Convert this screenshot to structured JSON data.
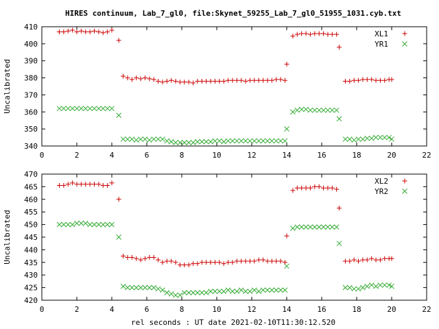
{
  "figure": {
    "title": "HIRES continuum, Lab_7_gl0, file:Skynet_59255_Lab_7_gl0_51955_1031.cyb.txt",
    "xlabel": "rel seconds : UT date 2021-02-10T11:30:12.520"
  },
  "colors": {
    "x_series": "#cc0000",
    "y_series": "#33aa33",
    "axes": "#000000"
  },
  "chart_data": [
    {
      "type": "scatter",
      "ylabel": "Uncalibrated",
      "xlim": [
        0,
        22
      ],
      "ylim": [
        340,
        410
      ],
      "xticks": [
        0,
        2,
        4,
        6,
        8,
        10,
        12,
        14,
        16,
        18,
        20,
        22
      ],
      "yticks": [
        340,
        350,
        360,
        370,
        380,
        390,
        400,
        410
      ],
      "legend_position": "top-right",
      "series": [
        {
          "name": "XL1",
          "marker": "+",
          "color": "#cc0000",
          "x": [
            1.0,
            1.25,
            1.5,
            1.75,
            2.0,
            2.25,
            2.5,
            2.75,
            3.0,
            3.25,
            3.5,
            3.75,
            4.0,
            4.4,
            4.65,
            4.9,
            5.15,
            5.4,
            5.65,
            5.9,
            6.15,
            6.4,
            6.65,
            6.9,
            7.15,
            7.4,
            7.65,
            7.9,
            8.15,
            8.4,
            8.65,
            8.9,
            9.15,
            9.4,
            9.65,
            9.9,
            10.15,
            10.4,
            10.65,
            10.9,
            11.15,
            11.4,
            11.65,
            11.9,
            12.15,
            12.4,
            12.65,
            12.9,
            13.15,
            13.4,
            13.65,
            13.9,
            14.0,
            14.35,
            14.6,
            14.85,
            15.1,
            15.35,
            15.6,
            15.85,
            16.1,
            16.35,
            16.6,
            16.85,
            17.0,
            17.35,
            17.6,
            17.85,
            18.1,
            18.35,
            18.6,
            18.85,
            19.1,
            19.35,
            19.6,
            19.85,
            20.0
          ],
          "y": [
            407,
            407,
            407.5,
            408,
            407,
            407.5,
            407,
            407,
            407.5,
            407,
            406.5,
            407,
            408,
            402,
            381,
            380,
            379,
            380,
            379.5,
            380,
            379.5,
            379,
            378,
            377.5,
            378,
            378.5,
            378,
            377.5,
            377.5,
            377.5,
            377,
            378,
            378,
            378,
            378,
            378,
            378,
            378,
            378.5,
            378.5,
            378.5,
            378.5,
            378,
            378.5,
            378.5,
            378.5,
            378.5,
            378.5,
            378.5,
            379,
            379,
            378.5,
            388,
            404.5,
            405.5,
            406,
            406,
            405.5,
            406,
            406,
            406,
            405.5,
            405.5,
            405.5,
            398,
            378,
            378,
            378.5,
            378.5,
            379,
            379,
            379,
            378.5,
            378.5,
            378.5,
            379,
            379
          ]
        },
        {
          "name": "YR1",
          "marker": "x",
          "color": "#33aa33",
          "x": [
            1.0,
            1.25,
            1.5,
            1.75,
            2.0,
            2.25,
            2.5,
            2.75,
            3.0,
            3.25,
            3.5,
            3.75,
            4.0,
            4.4,
            4.65,
            4.9,
            5.15,
            5.4,
            5.65,
            5.9,
            6.15,
            6.4,
            6.65,
            6.9,
            7.15,
            7.4,
            7.65,
            7.9,
            8.15,
            8.4,
            8.65,
            8.9,
            9.15,
            9.4,
            9.65,
            9.9,
            10.15,
            10.4,
            10.65,
            10.9,
            11.15,
            11.4,
            11.65,
            11.9,
            12.15,
            12.4,
            12.65,
            12.9,
            13.15,
            13.4,
            13.65,
            13.9,
            14.0,
            14.35,
            14.6,
            14.85,
            15.1,
            15.35,
            15.6,
            15.85,
            16.1,
            16.35,
            16.6,
            16.85,
            17.0,
            17.35,
            17.6,
            17.85,
            18.1,
            18.35,
            18.6,
            18.85,
            19.1,
            19.35,
            19.6,
            19.85,
            20.0
          ],
          "y": [
            362,
            362,
            362,
            362,
            362,
            362,
            362,
            362,
            362,
            362,
            362,
            362,
            362,
            358,
            344,
            344,
            344,
            343.5,
            344,
            344,
            343.5,
            344,
            344,
            344,
            343,
            342.5,
            342,
            342,
            342,
            342,
            342,
            342.5,
            342.5,
            342.5,
            342.5,
            343,
            343,
            342.5,
            343,
            343,
            343,
            343,
            343,
            343,
            343,
            343,
            343,
            343,
            343,
            343,
            343,
            343,
            350,
            360,
            361,
            361.5,
            361.5,
            361,
            361,
            361,
            361,
            361,
            361,
            361,
            356,
            344,
            344,
            343.5,
            344,
            344,
            344.5,
            344.5,
            345,
            345,
            345,
            345,
            344
          ]
        }
      ]
    },
    {
      "type": "scatter",
      "ylabel": "Uncalibrated",
      "xlim": [
        0,
        22
      ],
      "ylim": [
        420,
        470
      ],
      "xticks": [
        0,
        2,
        4,
        6,
        8,
        10,
        12,
        14,
        16,
        18,
        20,
        22
      ],
      "yticks": [
        420,
        425,
        430,
        435,
        440,
        445,
        450,
        455,
        460,
        465,
        470
      ],
      "legend_position": "top-right",
      "series": [
        {
          "name": "XL2",
          "marker": "+",
          "color": "#cc0000",
          "x": [
            1.0,
            1.25,
            1.5,
            1.75,
            2.0,
            2.25,
            2.5,
            2.75,
            3.0,
            3.25,
            3.5,
            3.75,
            4.0,
            4.4,
            4.65,
            4.9,
            5.15,
            5.4,
            5.65,
            5.9,
            6.15,
            6.4,
            6.65,
            6.9,
            7.15,
            7.4,
            7.65,
            7.9,
            8.15,
            8.4,
            8.65,
            8.9,
            9.15,
            9.4,
            9.65,
            9.9,
            10.15,
            10.4,
            10.65,
            10.9,
            11.15,
            11.4,
            11.65,
            11.9,
            12.15,
            12.4,
            12.65,
            12.9,
            13.15,
            13.4,
            13.65,
            13.9,
            14.0,
            14.35,
            14.6,
            14.85,
            15.1,
            15.35,
            15.6,
            15.85,
            16.1,
            16.35,
            16.6,
            16.85,
            17.0,
            17.35,
            17.6,
            17.85,
            18.1,
            18.35,
            18.6,
            18.85,
            19.1,
            19.35,
            19.6,
            19.85,
            20.0
          ],
          "y": [
            465.5,
            465.5,
            466,
            466.5,
            466,
            466,
            466,
            466,
            466,
            466,
            465.5,
            465.5,
            466.5,
            460,
            437.5,
            437,
            437,
            436.5,
            436,
            436.5,
            437,
            437,
            436,
            435,
            435.5,
            435.5,
            435,
            434,
            434,
            434,
            434.5,
            434.5,
            435,
            435,
            435,
            435,
            435,
            434.5,
            435,
            435,
            435.5,
            435.5,
            435.5,
            435.5,
            435.5,
            436,
            436,
            435.5,
            435.5,
            435.5,
            435.5,
            435,
            445.5,
            463.5,
            464.5,
            464.5,
            464.5,
            464.5,
            465,
            465,
            464.5,
            464.5,
            464.5,
            464,
            456.5,
            435.5,
            435.5,
            436,
            435.5,
            436,
            436,
            436.5,
            436,
            436,
            436.5,
            436.5,
            436.5
          ]
        },
        {
          "name": "YR2",
          "marker": "x",
          "color": "#33aa33",
          "x": [
            1.0,
            1.25,
            1.5,
            1.75,
            2.0,
            2.25,
            2.5,
            2.75,
            3.0,
            3.25,
            3.5,
            3.75,
            4.0,
            4.4,
            4.65,
            4.9,
            5.15,
            5.4,
            5.65,
            5.9,
            6.15,
            6.4,
            6.65,
            6.9,
            7.15,
            7.4,
            7.65,
            7.9,
            8.15,
            8.4,
            8.65,
            8.9,
            9.15,
            9.4,
            9.65,
            9.9,
            10.15,
            10.4,
            10.65,
            10.9,
            11.15,
            11.4,
            11.65,
            11.9,
            12.15,
            12.4,
            12.65,
            12.9,
            13.15,
            13.4,
            13.65,
            13.9,
            14.0,
            14.35,
            14.6,
            14.85,
            15.1,
            15.35,
            15.6,
            15.85,
            16.1,
            16.35,
            16.6,
            16.85,
            17.0,
            17.35,
            17.6,
            17.85,
            18.1,
            18.35,
            18.6,
            18.85,
            19.1,
            19.35,
            19.6,
            19.85,
            20.0
          ],
          "y": [
            450,
            450,
            450,
            450,
            450.5,
            450.5,
            450.5,
            450,
            450,
            450,
            450,
            450,
            450,
            445,
            425.5,
            425,
            425,
            425,
            425,
            425,
            425,
            425,
            424.5,
            424,
            423,
            422.5,
            422,
            422,
            423,
            423,
            423,
            423,
            423,
            423,
            423.5,
            423.5,
            423.5,
            423.5,
            424,
            423.5,
            423.5,
            424,
            423.5,
            423.5,
            424,
            423.5,
            424,
            424,
            424,
            424,
            424,
            424,
            433.5,
            448.5,
            449,
            449,
            449,
            449,
            449,
            449,
            449,
            449,
            449,
            449,
            442.5,
            425,
            425,
            424.5,
            424.5,
            425,
            425.5,
            426,
            425.5,
            426,
            426,
            426,
            425.5
          ]
        }
      ]
    }
  ]
}
